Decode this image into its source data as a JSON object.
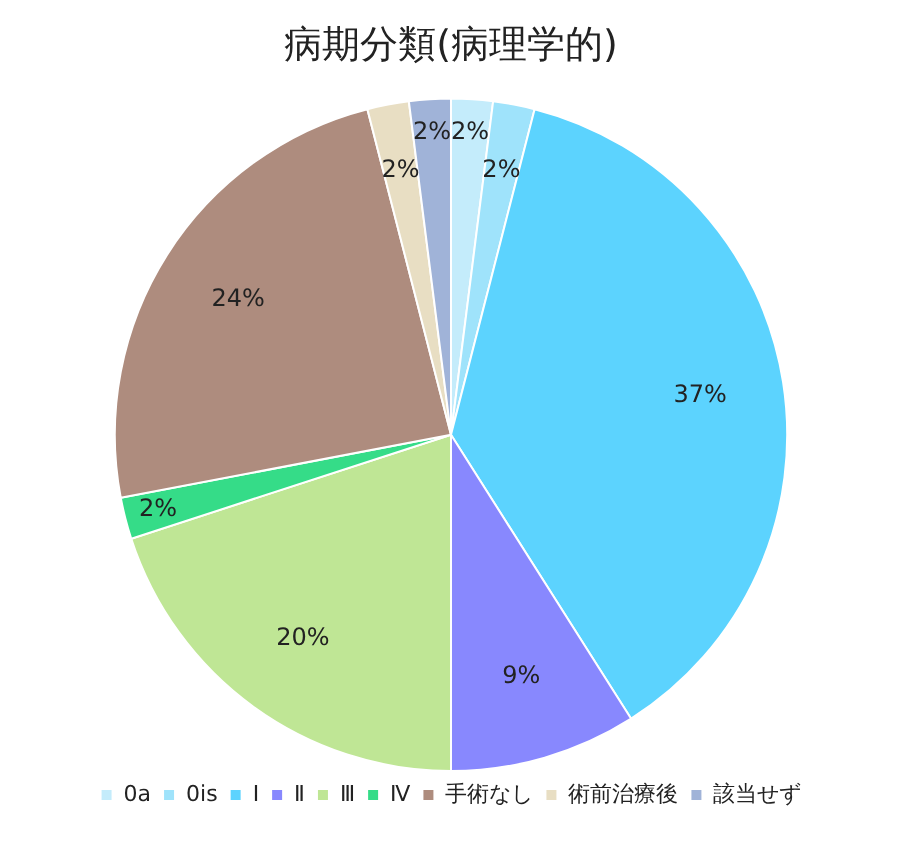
{
  "chart_data": {
    "type": "pie",
    "title": "病期分類(病理学的)",
    "categories": [
      "0a",
      "0is",
      "Ⅰ",
      "Ⅱ",
      "Ⅲ",
      "Ⅳ",
      "手術なし",
      "術前治療後",
      "該当せず"
    ],
    "values": [
      2,
      2,
      37,
      9,
      20,
      2,
      24,
      2,
      2
    ],
    "colors": [
      "#c4ecfb",
      "#9fe3fb",
      "#5cd3fe",
      "#8888fe",
      "#bfe695",
      "#35dc88",
      "#ae8c7e",
      "#e8dec3",
      "#a0b3d8"
    ],
    "value_labels": [
      "2%",
      "2%",
      "37%",
      "9%",
      "20%",
      "2%",
      "24%",
      "2%",
      "2%"
    ],
    "legend": "bottom"
  }
}
